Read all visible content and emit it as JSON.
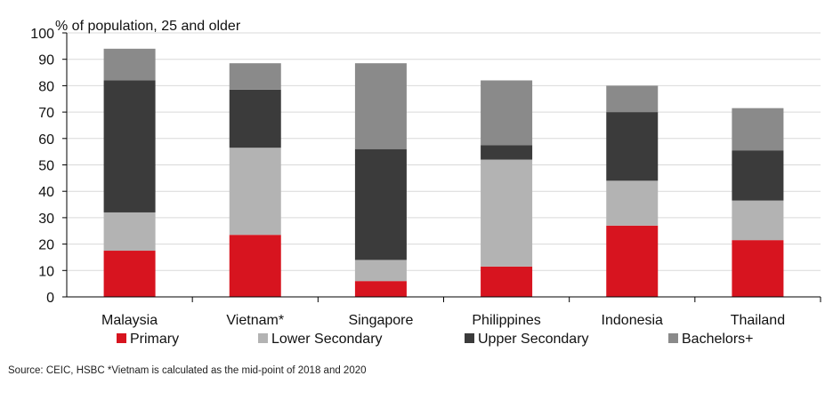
{
  "chart_data": {
    "type": "bar",
    "stacked": true,
    "title": "",
    "ylabel": "% of population, 25 and older",
    "xlabel": "",
    "ylim": [
      0,
      100
    ],
    "yticks": [
      0,
      10,
      20,
      30,
      40,
      50,
      60,
      70,
      80,
      90,
      100
    ],
    "grid": true,
    "legend_position": "bottom",
    "categories": [
      "Malaysia",
      "Vietnam*",
      "Singapore",
      "Philippines",
      "Indonesia",
      "Thailand"
    ],
    "series": [
      {
        "name": "Primary",
        "color": "#d7141f",
        "values": [
          17.5,
          23.5,
          6,
          11.5,
          27,
          21.5
        ]
      },
      {
        "name": "Lower Secondary",
        "color": "#b3b3b3",
        "values": [
          14.5,
          33,
          8,
          40.5,
          17,
          15
        ]
      },
      {
        "name": "Upper Secondary",
        "color": "#3b3b3b",
        "values": [
          50,
          22,
          42,
          5.5,
          26,
          19
        ]
      },
      {
        "name": "Bachelors+",
        "color": "#8a8a8a",
        "values": [
          12,
          10,
          32.5,
          24.5,
          10,
          16
        ]
      }
    ]
  },
  "source_note": "Source: CEIC, HSBC *Vietnam is calculated as the mid-point of 2018 and 2020"
}
